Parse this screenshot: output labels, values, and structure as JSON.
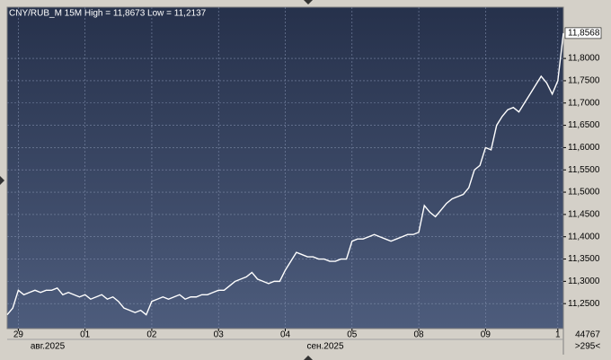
{
  "chart_data": {
    "type": "line",
    "title": "CNY/RUB_M 15M High = 11,8673 Low = 11,2137",
    "series": [
      {
        "name": "CNY/RUB_M",
        "color": "#ffffff",
        "values": [
          11.225,
          11.24,
          11.28,
          11.27,
          11.275,
          11.28,
          11.275,
          11.28,
          11.28,
          11.285,
          11.27,
          11.275,
          11.27,
          11.265,
          11.27,
          11.26,
          11.265,
          11.27,
          11.26,
          11.265,
          11.255,
          11.24,
          11.235,
          11.23,
          11.235,
          11.225,
          11.255,
          11.26,
          11.265,
          11.26,
          11.265,
          11.27,
          11.26,
          11.265,
          11.265,
          11.27,
          11.27,
          11.275,
          11.28,
          11.28,
          11.29,
          11.3,
          11.305,
          11.31,
          11.32,
          11.305,
          11.3,
          11.295,
          11.3,
          11.3,
          11.325,
          11.345,
          11.365,
          11.36,
          11.355,
          11.355,
          11.35,
          11.35,
          11.345,
          11.345,
          11.35,
          11.35,
          11.39,
          11.395,
          11.395,
          11.4,
          11.405,
          11.4,
          11.395,
          11.39,
          11.395,
          11.4,
          11.405,
          11.405,
          11.41,
          11.47,
          11.455,
          11.445,
          11.46,
          11.475,
          11.485,
          11.49,
          11.495,
          11.51,
          11.55,
          11.56,
          11.6,
          11.595,
          11.65,
          11.67,
          11.685,
          11.69,
          11.68,
          11.7,
          11.72,
          11.74,
          11.76,
          11.745,
          11.72,
          11.75,
          11.8568
        ]
      }
    ],
    "last_price": {
      "value": 11.8568,
      "label": "11,8568"
    },
    "xlim": [
      0,
      100
    ],
    "xticks": [
      {
        "value": 2,
        "label": "29"
      },
      {
        "value": 14,
        "label": "01"
      },
      {
        "value": 26,
        "label": "02"
      },
      {
        "value": 38,
        "label": "03"
      },
      {
        "value": 50,
        "label": "04"
      },
      {
        "value": 62,
        "label": "05"
      },
      {
        "value": 74,
        "label": "08"
      },
      {
        "value": 86,
        "label": "09"
      },
      {
        "value": 99,
        "label": "1"
      }
    ],
    "month_labels": [
      "авг.2025",
      "сен.2025"
    ],
    "ylim": [
      11.194,
      11.915
    ],
    "yticks": [
      {
        "value": 11.25,
        "label": "11,2500"
      },
      {
        "value": 11.3,
        "label": "11,3000"
      },
      {
        "value": 11.35,
        "label": "11,3500"
      },
      {
        "value": 11.4,
        "label": "11,4000"
      },
      {
        "value": 11.45,
        "label": "11,4500"
      },
      {
        "value": 11.5,
        "label": "11,5000"
      },
      {
        "value": 11.55,
        "label": "11,5500"
      },
      {
        "value": 11.6,
        "label": "11,6000"
      },
      {
        "value": 11.65,
        "label": "11,6500"
      },
      {
        "value": 11.7,
        "label": "11,7000"
      },
      {
        "value": 11.75,
        "label": "11,7500"
      },
      {
        "value": 11.8,
        "label": "11,8000"
      }
    ],
    "grid": true,
    "footer_right": [
      "44767",
      ">295<"
    ]
  }
}
